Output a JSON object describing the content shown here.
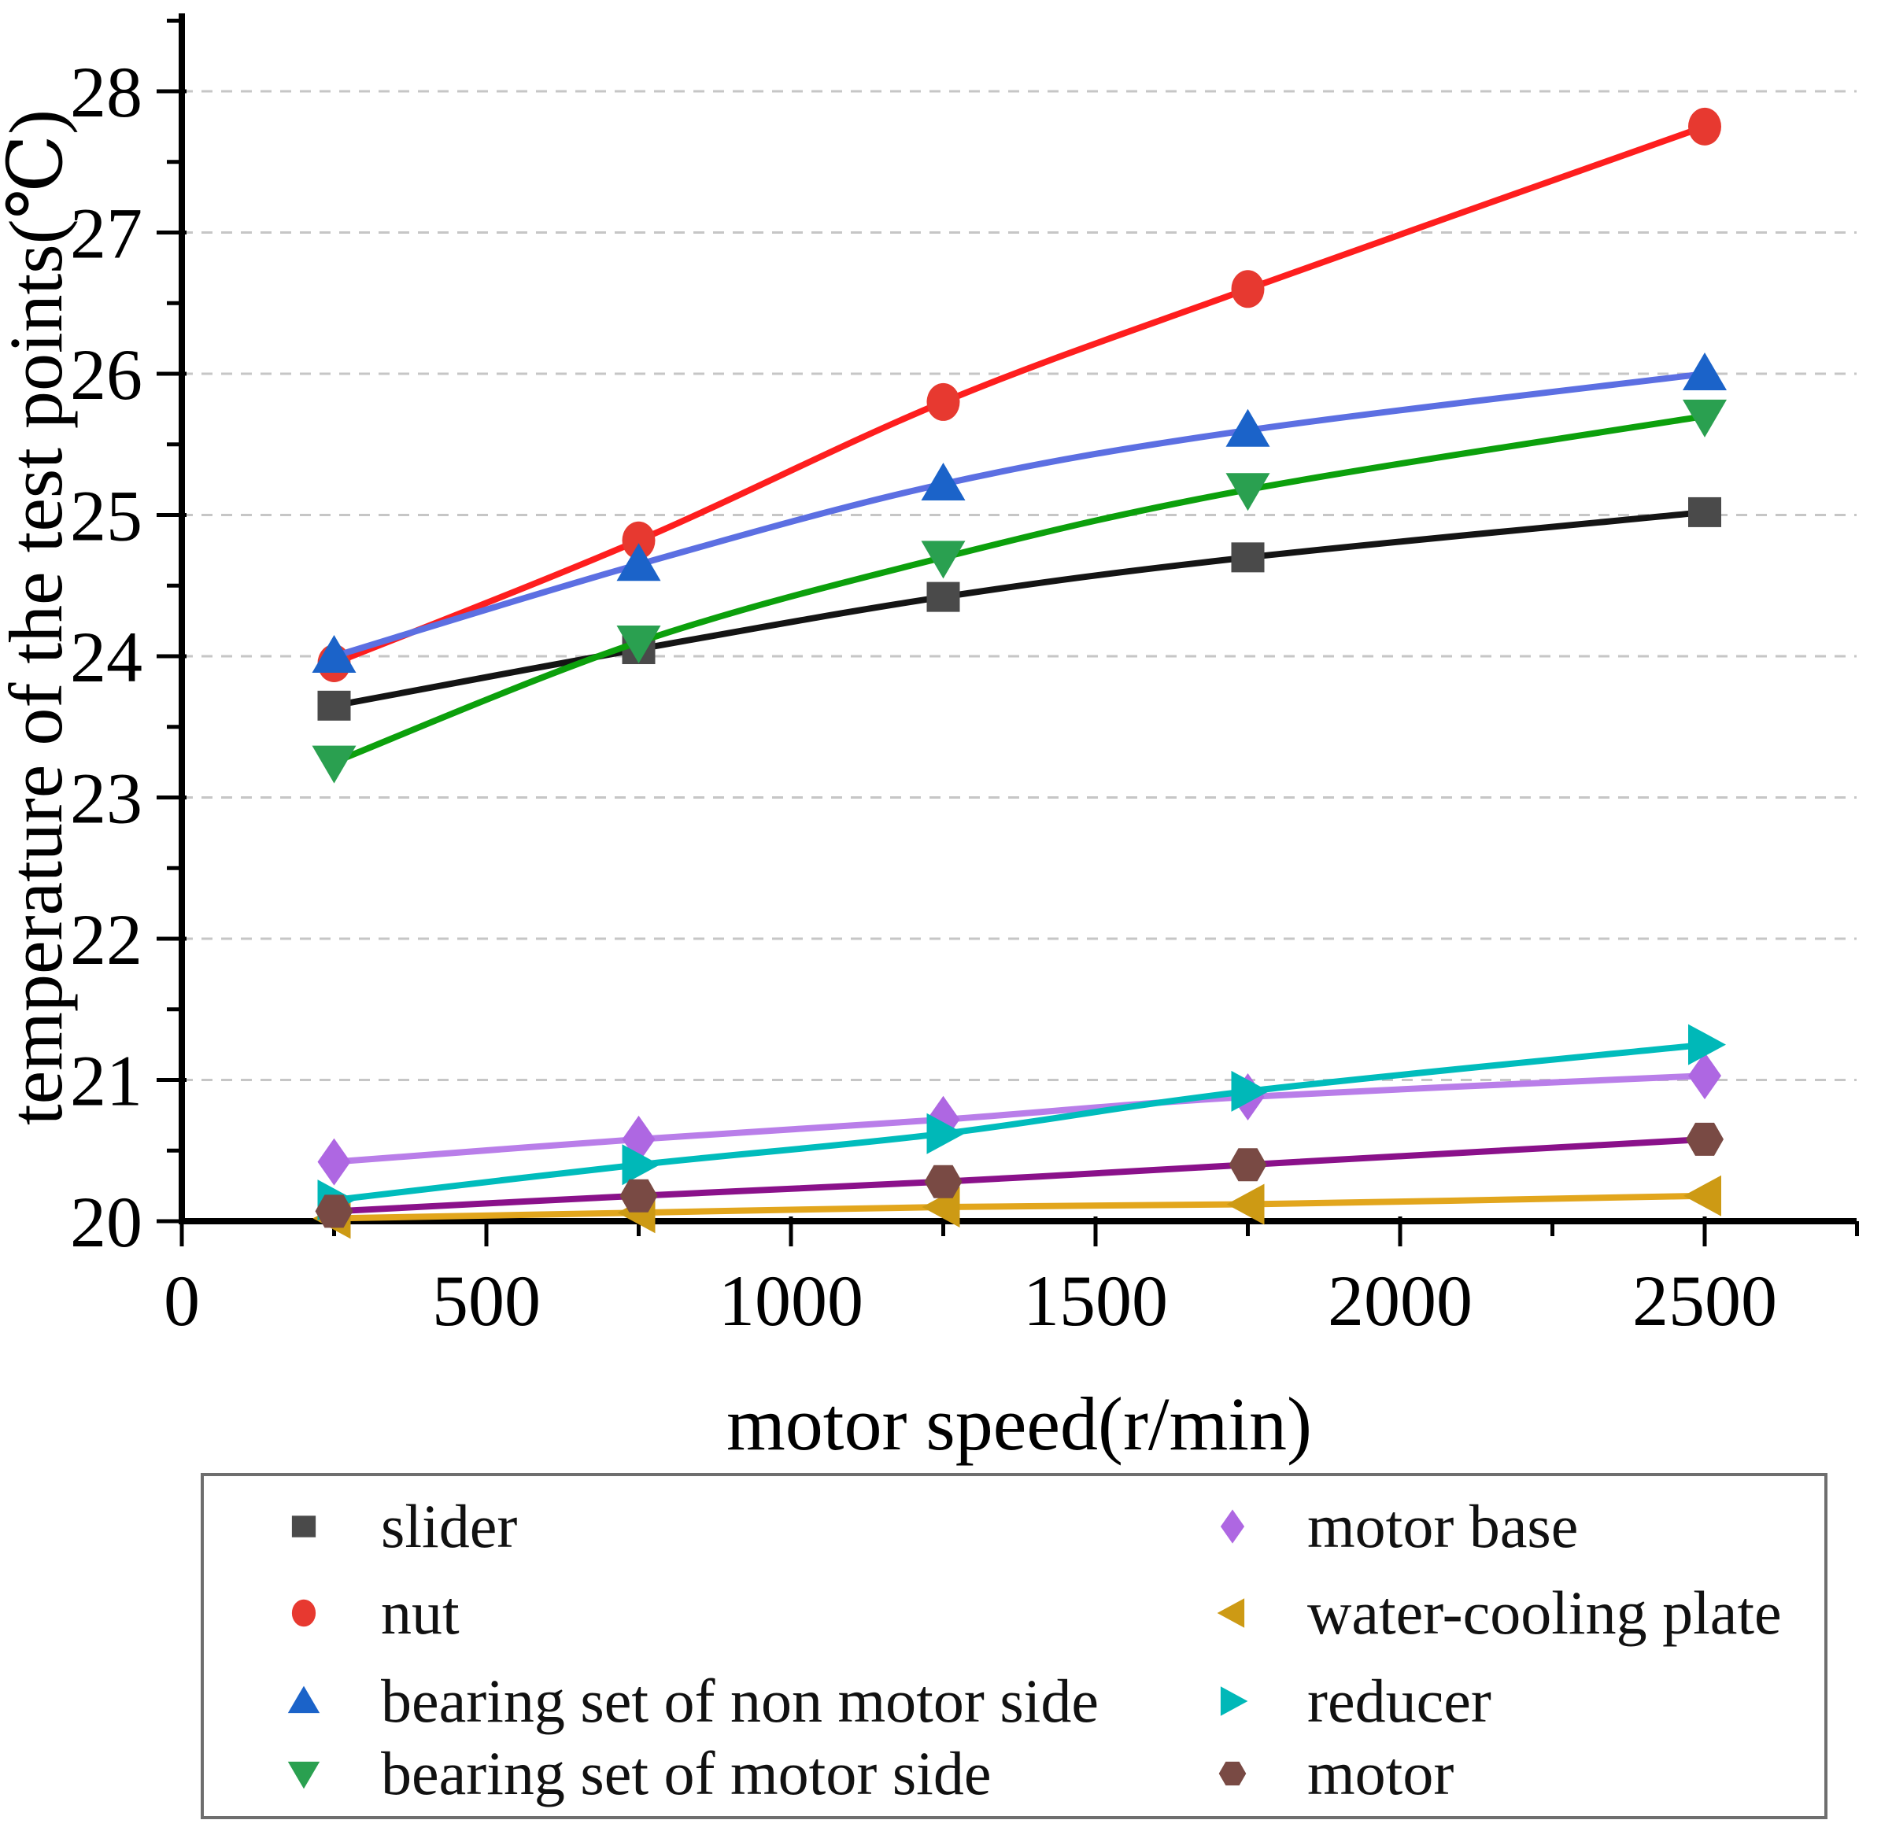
{
  "chart_data": {
    "type": "line",
    "title": "",
    "xlabel": "motor speed(r/min)",
    "ylabel": "temperature of the test points(℃)",
    "xlim": [
      0,
      2750
    ],
    "ylim": [
      20,
      28.55
    ],
    "x_major_ticks": [
      0,
      500,
      1000,
      1500,
      2000,
      2500
    ],
    "x_major_tick_labels": [
      "0",
      "500",
      "1000",
      "1500",
      "2000",
      "2500"
    ],
    "x_minor_ticks": [
      250,
      750,
      1250,
      1750,
      2250,
      2750
    ],
    "y_major_ticks": [
      20,
      21,
      22,
      23,
      24,
      25,
      26,
      27,
      28
    ],
    "y_major_tick_labels": [
      "20",
      "21",
      "22",
      "23",
      "24",
      "25",
      "26",
      "27",
      "28"
    ],
    "y_minor_ticks": [
      20.5,
      21.5,
      22.5,
      23.5,
      24.5,
      25.5,
      26.5,
      27.5,
      28.5
    ],
    "grid": "horizontal-dashed",
    "grid_lines_at": [
      21,
      22,
      23,
      24,
      25,
      26,
      27,
      28
    ],
    "grid_color": "#c6c6c6",
    "axis_color": "#000000",
    "x": [
      250,
      750,
      1250,
      1750,
      2500
    ],
    "series": [
      {
        "name": "slider",
        "marker": "square",
        "marker_color": "#4a4a4a",
        "line_color": "#141414",
        "values": [
          23.65,
          24.05,
          24.42,
          24.7,
          25.02
        ]
      },
      {
        "name": "nut",
        "marker": "circle",
        "marker_color": "#e73930",
        "line_color": "#fe1e1e",
        "values": [
          23.95,
          24.82,
          25.8,
          26.6,
          27.75
        ]
      },
      {
        "name": "bearing set of non motor side",
        "marker": "triangle-up",
        "marker_color": "#1b63c9",
        "line_color": "#5c6fe2",
        "values": [
          24.0,
          24.65,
          25.22,
          25.6,
          26.0
        ]
      },
      {
        "name": "bearing set of motor side",
        "marker": "triangle-down",
        "marker_color": "#2aa050",
        "line_color": "#0ca00c",
        "values": [
          23.25,
          24.1,
          24.7,
          25.18,
          25.7
        ]
      },
      {
        "name": "motor base",
        "marker": "diamond",
        "marker_color": "#ae67e2",
        "line_color": "#b97ee9",
        "values": [
          20.42,
          20.58,
          20.72,
          20.88,
          21.03
        ]
      },
      {
        "name": "water-cooling plate",
        "marker": "triangle-left",
        "marker_color": "#cd9a14",
        "line_color": "#e2a61d",
        "values": [
          20.02,
          20.06,
          20.1,
          20.12,
          20.18
        ]
      },
      {
        "name": "reducer",
        "marker": "triangle-right",
        "marker_color": "#00b8b8",
        "line_color": "#00bcbc",
        "values": [
          20.15,
          20.4,
          20.62,
          20.92,
          21.25
        ]
      },
      {
        "name": "motor",
        "marker": "hexagon",
        "marker_color": "#794a44",
        "line_color": "#8a118a",
        "values": [
          20.07,
          20.18,
          20.28,
          20.4,
          20.58
        ]
      }
    ],
    "legend": {
      "position": "bottom-box",
      "columns": [
        [
          0,
          1,
          2,
          3
        ],
        [
          4,
          5,
          6,
          7
        ]
      ]
    }
  }
}
